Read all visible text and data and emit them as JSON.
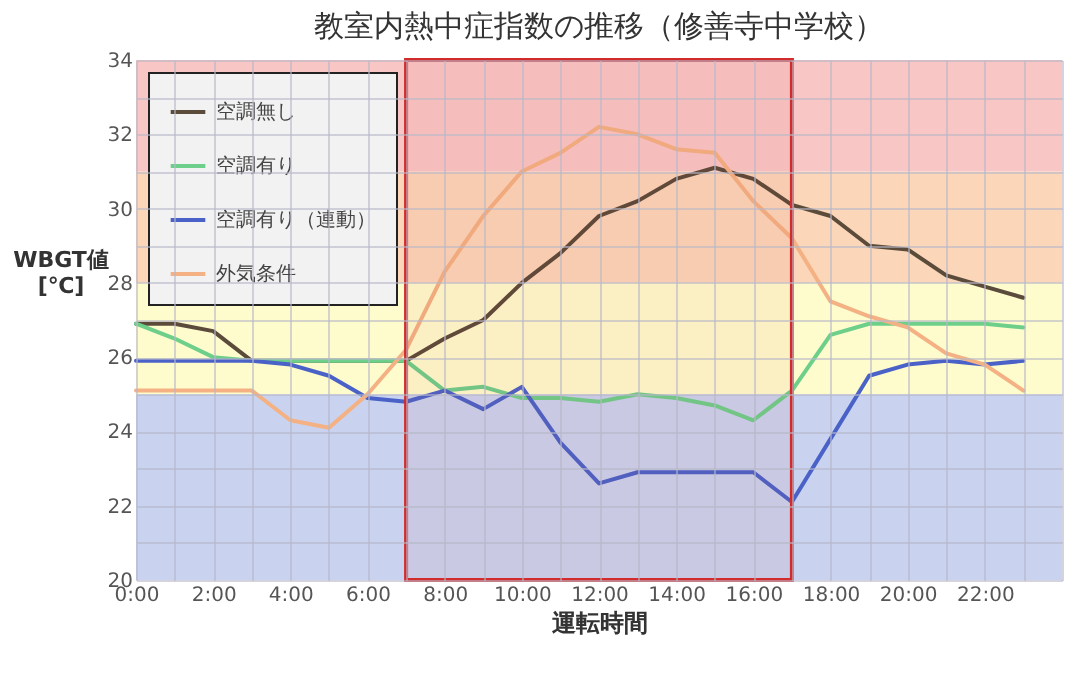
{
  "chart_data": {
    "type": "line",
    "title": "教室内熱中症指数の推移（修善寺中学校）",
    "xlabel": "運転時間",
    "ylabel": "WBGT値\n[℃]",
    "x": [
      0,
      1,
      2,
      3,
      4,
      5,
      6,
      7,
      8,
      9,
      10,
      11,
      12,
      13,
      14,
      15,
      16,
      17,
      18,
      19,
      20,
      21,
      22,
      23
    ],
    "series": [
      {
        "name": "空調無し",
        "color": "#5b4b3b",
        "values": [
          26.9,
          26.9,
          26.7,
          25.9,
          25.9,
          25.9,
          25.9,
          25.9,
          26.5,
          27.0,
          28.0,
          28.8,
          29.8,
          30.2,
          30.8,
          31.1,
          30.8,
          30.1,
          29.8,
          29.0,
          28.9,
          28.2,
          27.9,
          27.6
        ]
      },
      {
        "name": "空調有り",
        "color": "#6dcf8a",
        "values": [
          26.9,
          26.5,
          26.0,
          25.9,
          25.9,
          25.9,
          25.9,
          25.9,
          25.1,
          25.2,
          24.9,
          24.9,
          24.8,
          25.0,
          24.9,
          24.7,
          24.3,
          25.1,
          26.6,
          26.9,
          26.9,
          26.9,
          26.9,
          26.8
        ]
      },
      {
        "name": "空調有り（連動）",
        "color": "#4a62c8",
        "values": [
          25.9,
          25.9,
          25.9,
          25.9,
          25.8,
          25.5,
          24.9,
          24.8,
          25.1,
          24.6,
          25.2,
          23.7,
          22.6,
          22.9,
          22.9,
          22.9,
          22.9,
          22.1,
          23.8,
          25.5,
          25.8,
          25.9,
          25.8,
          25.9
        ]
      },
      {
        "name": "外気条件",
        "color": "#f4b183",
        "values": [
          25.1,
          25.1,
          25.1,
          25.1,
          24.3,
          24.1,
          25.0,
          26.2,
          28.3,
          29.8,
          31.0,
          31.5,
          32.2,
          32.0,
          31.6,
          31.5,
          30.2,
          29.2,
          27.5,
          27.1,
          26.8,
          26.1,
          25.8,
          25.1
        ]
      }
    ],
    "xlim": [
      0,
      24
    ],
    "xticks": [
      {
        "value": 0,
        "label": "0:00"
      },
      {
        "value": 1,
        "label": null
      },
      {
        "value": 2,
        "label": "2:00"
      },
      {
        "value": 3,
        "label": null
      },
      {
        "value": 4,
        "label": "4:00"
      },
      {
        "value": 5,
        "label": null
      },
      {
        "value": 6,
        "label": "6:00"
      },
      {
        "value": 7,
        "label": null
      },
      {
        "value": 8,
        "label": "8:00"
      },
      {
        "value": 9,
        "label": null
      },
      {
        "value": 10,
        "label": "10:00"
      },
      {
        "value": 11,
        "label": null
      },
      {
        "value": 12,
        "label": "12:00"
      },
      {
        "value": 13,
        "label": null
      },
      {
        "value": 14,
        "label": "14:00"
      },
      {
        "value": 15,
        "label": null
      },
      {
        "value": 16,
        "label": "16:00"
      },
      {
        "value": 17,
        "label": null
      },
      {
        "value": 18,
        "label": "18:00"
      },
      {
        "value": 19,
        "label": null
      },
      {
        "value": 20,
        "label": "20:00"
      },
      {
        "value": 21,
        "label": null
      },
      {
        "value": 22,
        "label": "22:00"
      },
      {
        "value": 23,
        "label": null
      },
      {
        "value": 24,
        "label": null
      }
    ],
    "ylim": [
      20,
      34
    ],
    "yticks": [
      20,
      {
        "value": 21,
        "label": null
      },
      22,
      {
        "value": 23,
        "label": null
      },
      24,
      {
        "value": 25,
        "label": null
      },
      26,
      {
        "value": 27,
        "label": null
      },
      28,
      {
        "value": 29,
        "label": null
      },
      30,
      {
        "value": 31,
        "label": null
      },
      32,
      {
        "value": 33,
        "label": null
      },
      34
    ],
    "bands": [
      {
        "axis": "y",
        "from": 20,
        "to": 25,
        "color": "#c9d3f0"
      },
      {
        "axis": "y",
        "from": 25,
        "to": 28,
        "color": "#fefccd"
      },
      {
        "axis": "y",
        "from": 28,
        "to": 31,
        "color": "#fbd6b8"
      },
      {
        "axis": "y",
        "from": 31,
        "to": 34,
        "color": "#f9c6c6"
      },
      {
        "axis": "x",
        "from": 7,
        "to": 17,
        "color": "#d22b2b"
      }
    ],
    "grid": true,
    "legend": "top left",
    "marker": "none",
    "line_style": "solid"
  }
}
